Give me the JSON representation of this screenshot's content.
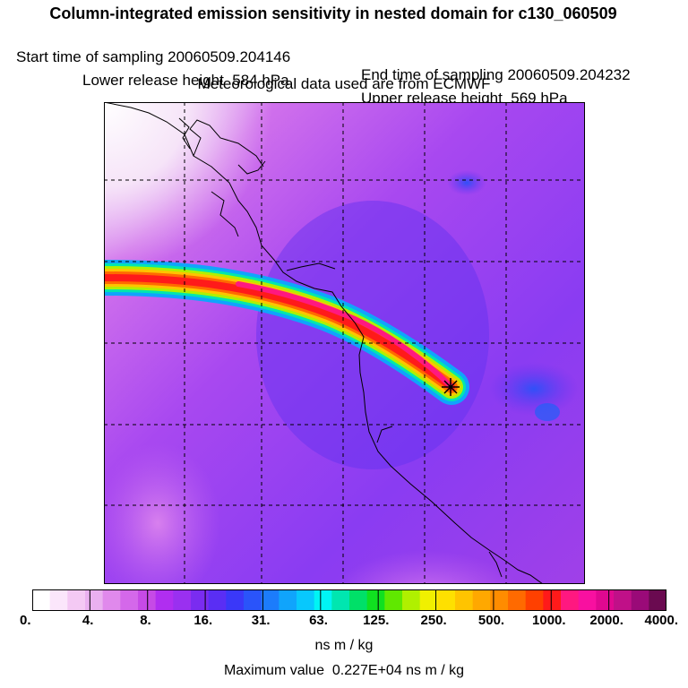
{
  "header": {
    "title": "Column-integrated emission sensitivity in nested domain for c130_060509",
    "start_label": "Start time of sampling 20060509.204146",
    "end_label": "End time of sampling 20060509.204232",
    "lower_label": "Lower release height  584 hPa",
    "upper_label": "Upper release height  569 hPa",
    "met_label": "Meteorological data used are from ECMWF"
  },
  "legend": {
    "labels": [
      "0.",
      "4.",
      "8.",
      "16.",
      "31.",
      "63.",
      "125.",
      "250.",
      "500.",
      "1000.",
      "2000.",
      "4000."
    ],
    "unit": "ns m / kg",
    "colors": [
      "#ffffff",
      "#fbe6fb",
      "#f4c9f4",
      "#eab0f0",
      "#e089ec",
      "#d468ea",
      "#c64ae6",
      "#b02ef0",
      "#9a30f0",
      "#7a2cf0",
      "#5a2ef4",
      "#3a38f8",
      "#2a54fa",
      "#1c7cfb",
      "#10a4fc",
      "#08c8fd",
      "#00f4f4",
      "#00e6b0",
      "#00e068",
      "#10e020",
      "#60e800",
      "#b0f000",
      "#f0f000",
      "#fee000",
      "#ffc400",
      "#ffa800",
      "#ff8c00",
      "#ff6a00",
      "#ff4000",
      "#ff1a1a",
      "#ff1880",
      "#f810a0",
      "#e00890",
      "#c01088",
      "#9a0a78",
      "#6a0a50"
    ]
  },
  "footer": {
    "max_label": "Maximum value  0.227E+04 ns m / kg"
  },
  "map": {
    "background_color": "#a040f0",
    "release_marker": "star-marker"
  }
}
